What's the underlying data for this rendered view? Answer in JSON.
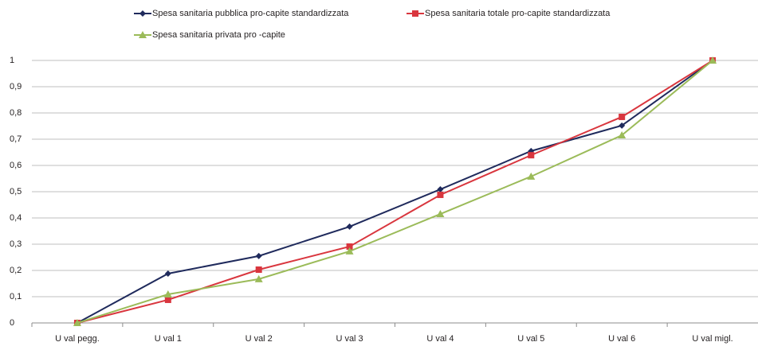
{
  "chart_data": {
    "type": "line",
    "categories": [
      "U val pegg.",
      "U val 1",
      "U val 2",
      "U val 3",
      "U val 4",
      "U val 5",
      "U val 6",
      "U val migl."
    ],
    "series": [
      {
        "name": "Spesa sanitaria pubblica pro-capite standardizzata",
        "color": "#1f2a5c",
        "marker": "diamond",
        "values": [
          0,
          0.188,
          0.255,
          0.367,
          0.509,
          0.655,
          0.752,
          1
        ]
      },
      {
        "name": "Spesa sanitaria totale pro-capite standardizzata",
        "color": "#d9363e",
        "marker": "square",
        "values": [
          0,
          0.088,
          0.203,
          0.291,
          0.488,
          0.639,
          0.785,
          1
        ]
      },
      {
        "name": "Spesa sanitaria privata pro -capite",
        "color": "#9bbb59",
        "marker": "triangle",
        "values": [
          0,
          0.109,
          0.167,
          0.273,
          0.415,
          0.558,
          0.715,
          1
        ]
      }
    ],
    "ylim": [
      0,
      1
    ],
    "yticks": [
      0,
      {
        "value": 0.1,
        "label": "0,1"
      },
      {
        "value": 0.2,
        "label": "0,2"
      },
      {
        "value": 0.3,
        "label": "0,3"
      },
      {
        "value": 0.4,
        "label": "0,4"
      },
      {
        "value": 0.5,
        "label": "0,5"
      },
      {
        "value": 0.6,
        "label": "0,6"
      },
      {
        "value": 0.7,
        "label": "0,7"
      },
      {
        "value": 0.8,
        "label": "0,8"
      },
      {
        "value": 0.9,
        "label": "0,9"
      },
      1
    ],
    "grid": true,
    "legend": "top"
  }
}
